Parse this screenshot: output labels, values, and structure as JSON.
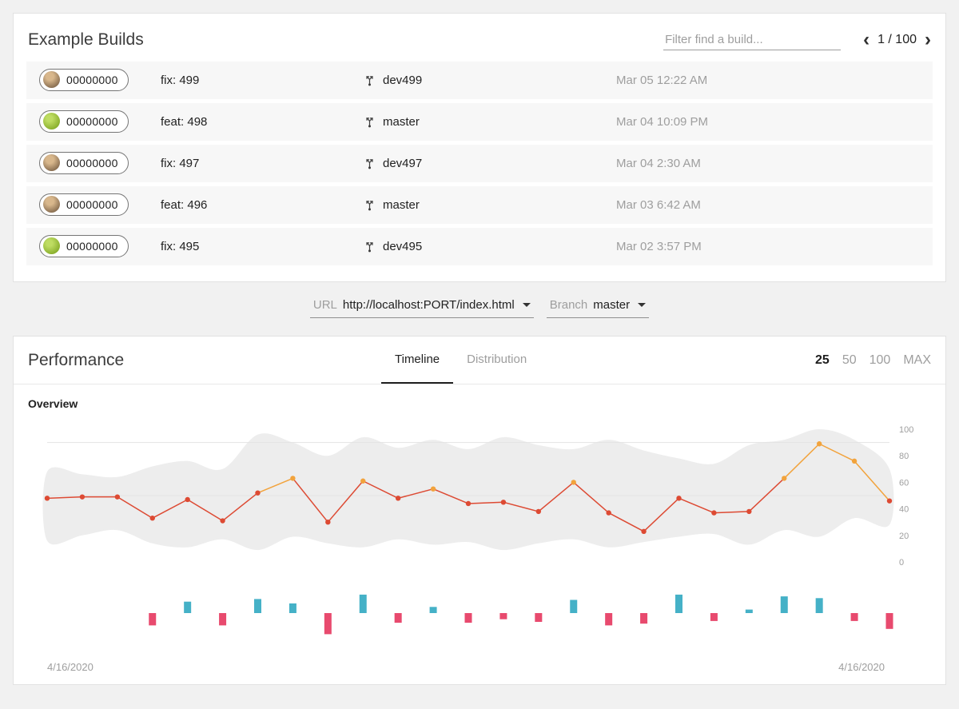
{
  "builds": {
    "title": "Example Builds",
    "filter_placeholder": "Filter find a build...",
    "pagination": {
      "current": "1 / 100",
      "prev_icon": "‹",
      "next_icon": "›"
    },
    "rows": [
      {
        "hash": "00000000",
        "avatar": "person",
        "message": "fix: 499",
        "branch": "dev499",
        "time": "Mar 05 12:22 AM"
      },
      {
        "hash": "00000000",
        "avatar": "android",
        "message": "feat: 498",
        "branch": "master",
        "time": "Mar 04 10:09 PM"
      },
      {
        "hash": "00000000",
        "avatar": "person",
        "message": "fix: 497",
        "branch": "dev497",
        "time": "Mar 04 2:30 AM"
      },
      {
        "hash": "00000000",
        "avatar": "person",
        "message": "feat: 496",
        "branch": "master",
        "time": "Mar 03 6:42 AM"
      },
      {
        "hash": "00000000",
        "avatar": "android",
        "message": "fix: 495",
        "branch": "dev495",
        "time": "Mar 02 3:57 PM"
      }
    ]
  },
  "selectors": {
    "url": {
      "label": "URL",
      "value": "http://localhost:PORT/index.html"
    },
    "branch": {
      "label": "Branch",
      "value": "master"
    }
  },
  "performance": {
    "title": "Performance",
    "tabs": [
      {
        "label": "Timeline",
        "active": true
      },
      {
        "label": "Distribution",
        "active": false
      }
    ],
    "limits": [
      {
        "label": "25",
        "active": true
      },
      {
        "label": "50",
        "active": false
      },
      {
        "label": "100",
        "active": false
      },
      {
        "label": "MAX",
        "active": false
      }
    ],
    "section_label": "Overview"
  },
  "chart_data": {
    "type": "line",
    "title": "Overview",
    "x_start_label": "4/16/2020",
    "x_end_label": "4/16/2020",
    "ylim": [
      0,
      100
    ],
    "yticks": [
      100,
      80,
      60,
      40,
      20,
      0
    ],
    "gridlines": [
      90,
      50
    ],
    "legend": "none",
    "line": {
      "name": "performance-score",
      "values": [
        48,
        49,
        49,
        33,
        47,
        31,
        52,
        63,
        30,
        61,
        48,
        55,
        44,
        45,
        38,
        60,
        37,
        23,
        48,
        37,
        38,
        63,
        89,
        76,
        46
      ],
      "color_low": "#dd4a33",
      "color_high": "#f2a33c",
      "high_threshold": 55
    },
    "band": {
      "name": "range-band",
      "upper": [
        68,
        66,
        64,
        72,
        76,
        70,
        96,
        90,
        80,
        94,
        86,
        92,
        85,
        94,
        88,
        85,
        92,
        84,
        78,
        74,
        88,
        92,
        100,
        92,
        70
      ],
      "lower": [
        16,
        20,
        24,
        14,
        11,
        17,
        9,
        19,
        14,
        11,
        17,
        13,
        15,
        9,
        14,
        17,
        11,
        15,
        19,
        21,
        13,
        24,
        19,
        33,
        28
      ],
      "color": "#ededed"
    },
    "bars": {
      "name": "delta-bars",
      "values": [
        0,
        0,
        0,
        -14,
        13,
        -14,
        16,
        11,
        -24,
        21,
        -11,
        7,
        -11,
        -7,
        -10,
        15,
        -14,
        -12,
        21,
        -9,
        4,
        19,
        17,
        -9,
        -18
      ],
      "positive_color": "#45b1c7",
      "negative_color": "#e84a6e"
    }
  }
}
